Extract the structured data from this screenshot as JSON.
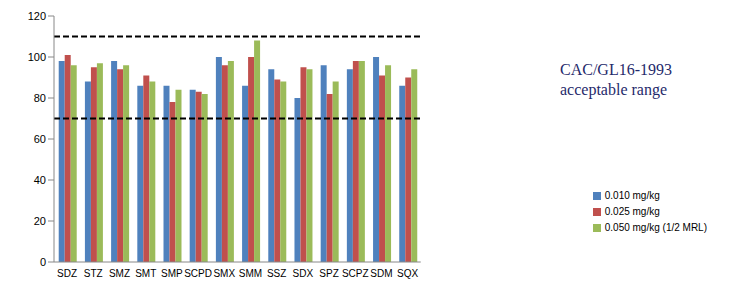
{
  "chart_data": {
    "type": "bar",
    "categories": [
      "SDZ",
      "STZ",
      "SMZ",
      "SMT",
      "SMP",
      "SCPD",
      "SMX",
      "SMM",
      "SSZ",
      "SDX",
      "SPZ",
      "SCPZ",
      "SDM",
      "SQX"
    ],
    "series": [
      {
        "name": "0.010 mg/kg",
        "color": "#4F81BD",
        "values": [
          98,
          88,
          98,
          86,
          86,
          84,
          100,
          86,
          94,
          80,
          96,
          94,
          100,
          86
        ]
      },
      {
        "name": "0.025 mg/kg",
        "color": "#C0504D",
        "values": [
          101,
          95,
          94,
          91,
          78,
          83,
          96,
          100,
          89,
          95,
          82,
          98,
          91,
          90
        ]
      },
      {
        "name": "0.050 mg/kg (1/2 MRL)",
        "color": "#9BBB59",
        "values": [
          96,
          97,
          96,
          88,
          84,
          82,
          98,
          108,
          88,
          94,
          88,
          98,
          96,
          94
        ]
      }
    ],
    "ylim": [
      0,
      120
    ],
    "yticks": [
      0,
      20,
      40,
      60,
      80,
      100,
      120
    ],
    "grid": false,
    "legend": "right",
    "annotations": [
      {
        "text": "CAC/GL16-1993 acceptable range",
        "range": [
          70,
          110
        ]
      }
    ]
  }
}
